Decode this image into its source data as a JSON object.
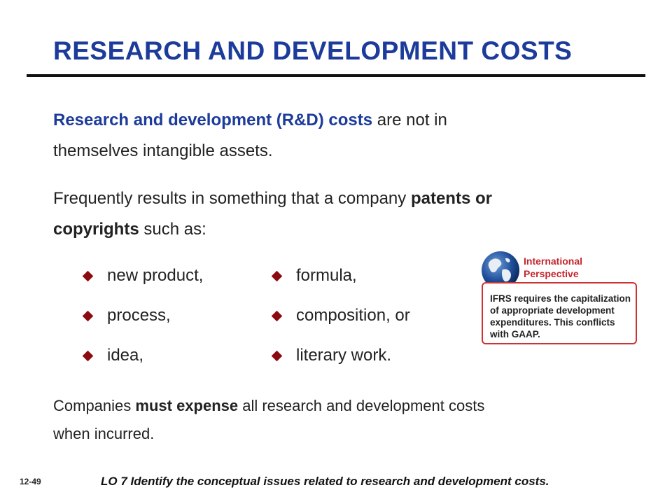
{
  "title": "RESEARCH AND DEVELOPMENT COSTS",
  "para1": {
    "bold": "Research and development (R&D) costs",
    "rest_line1": " are not in",
    "line2": "themselves intangible assets."
  },
  "para2": {
    "line1_plain": "Frequently results in something that a company ",
    "line1_bold": "patents or",
    "line2_bold": "copyrights",
    "line2_plain": " such as:"
  },
  "bullets": {
    "left": [
      "new product,",
      "process,",
      "idea,"
    ],
    "right": [
      "formula,",
      "composition, or",
      "literary work."
    ]
  },
  "international": {
    "label": "International\nPerspective",
    "text": "IFRS requires the capitalization\nof appropriate development\nexpenditures. This conflicts\nwith GAAP.",
    "accent": "#c4252b",
    "icon": "globe-icon"
  },
  "para3": {
    "plain1": "Companies ",
    "bold": "must expense",
    "plain2": " all research and development costs",
    "line2": "when incurred."
  },
  "footer": {
    "slide_number": "12-49",
    "lo": "LO 7  Identify the conceptual issues related to research and development costs."
  },
  "colors": {
    "title": "#1c3b9a",
    "bullet": "#8b0a10"
  }
}
